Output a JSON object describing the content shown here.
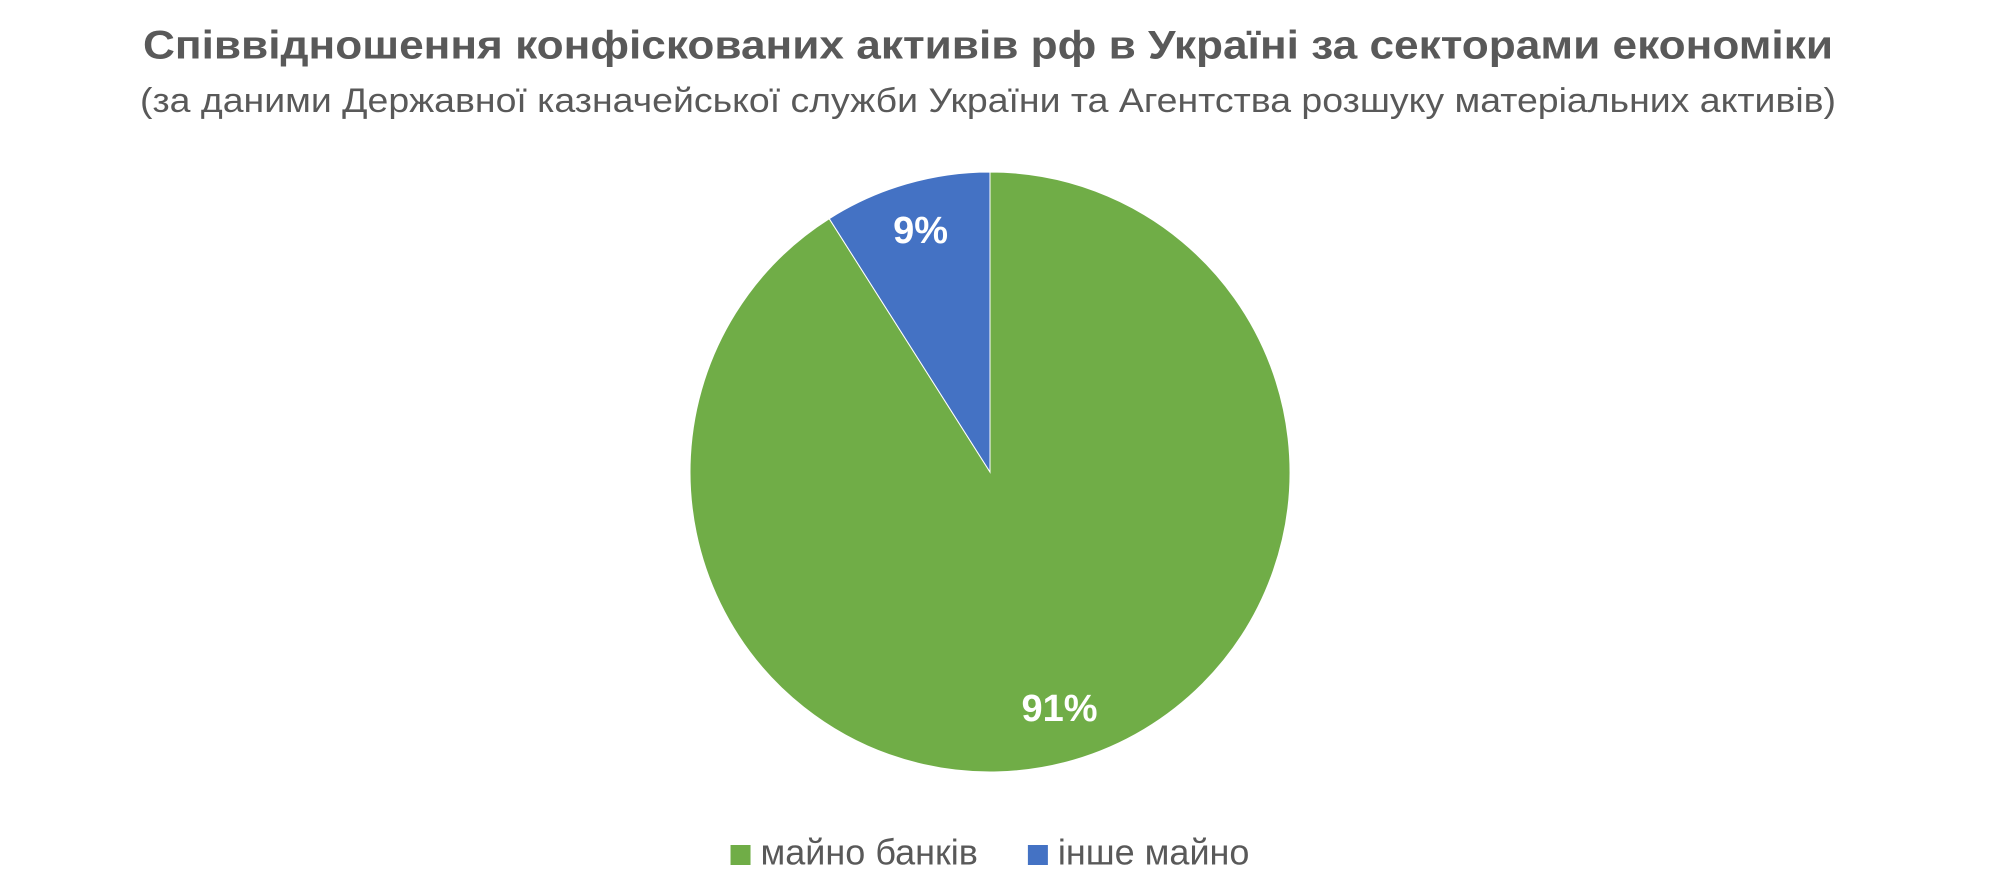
{
  "chart_data": {
    "type": "pie",
    "title": "Співвідношення конфіскованих активів рф в Україні за секторами економіки",
    "subtitle": "(за даними Державної казначейської служби України та Агентства розшуку матеріальних активів)",
    "categories": [
      "майно банків",
      "інше майно"
    ],
    "values": [
      91,
      9
    ],
    "value_labels": [
      "91%",
      "9%"
    ],
    "colors": [
      "#70ad47",
      "#4472c4"
    ],
    "legend": "bottom"
  }
}
